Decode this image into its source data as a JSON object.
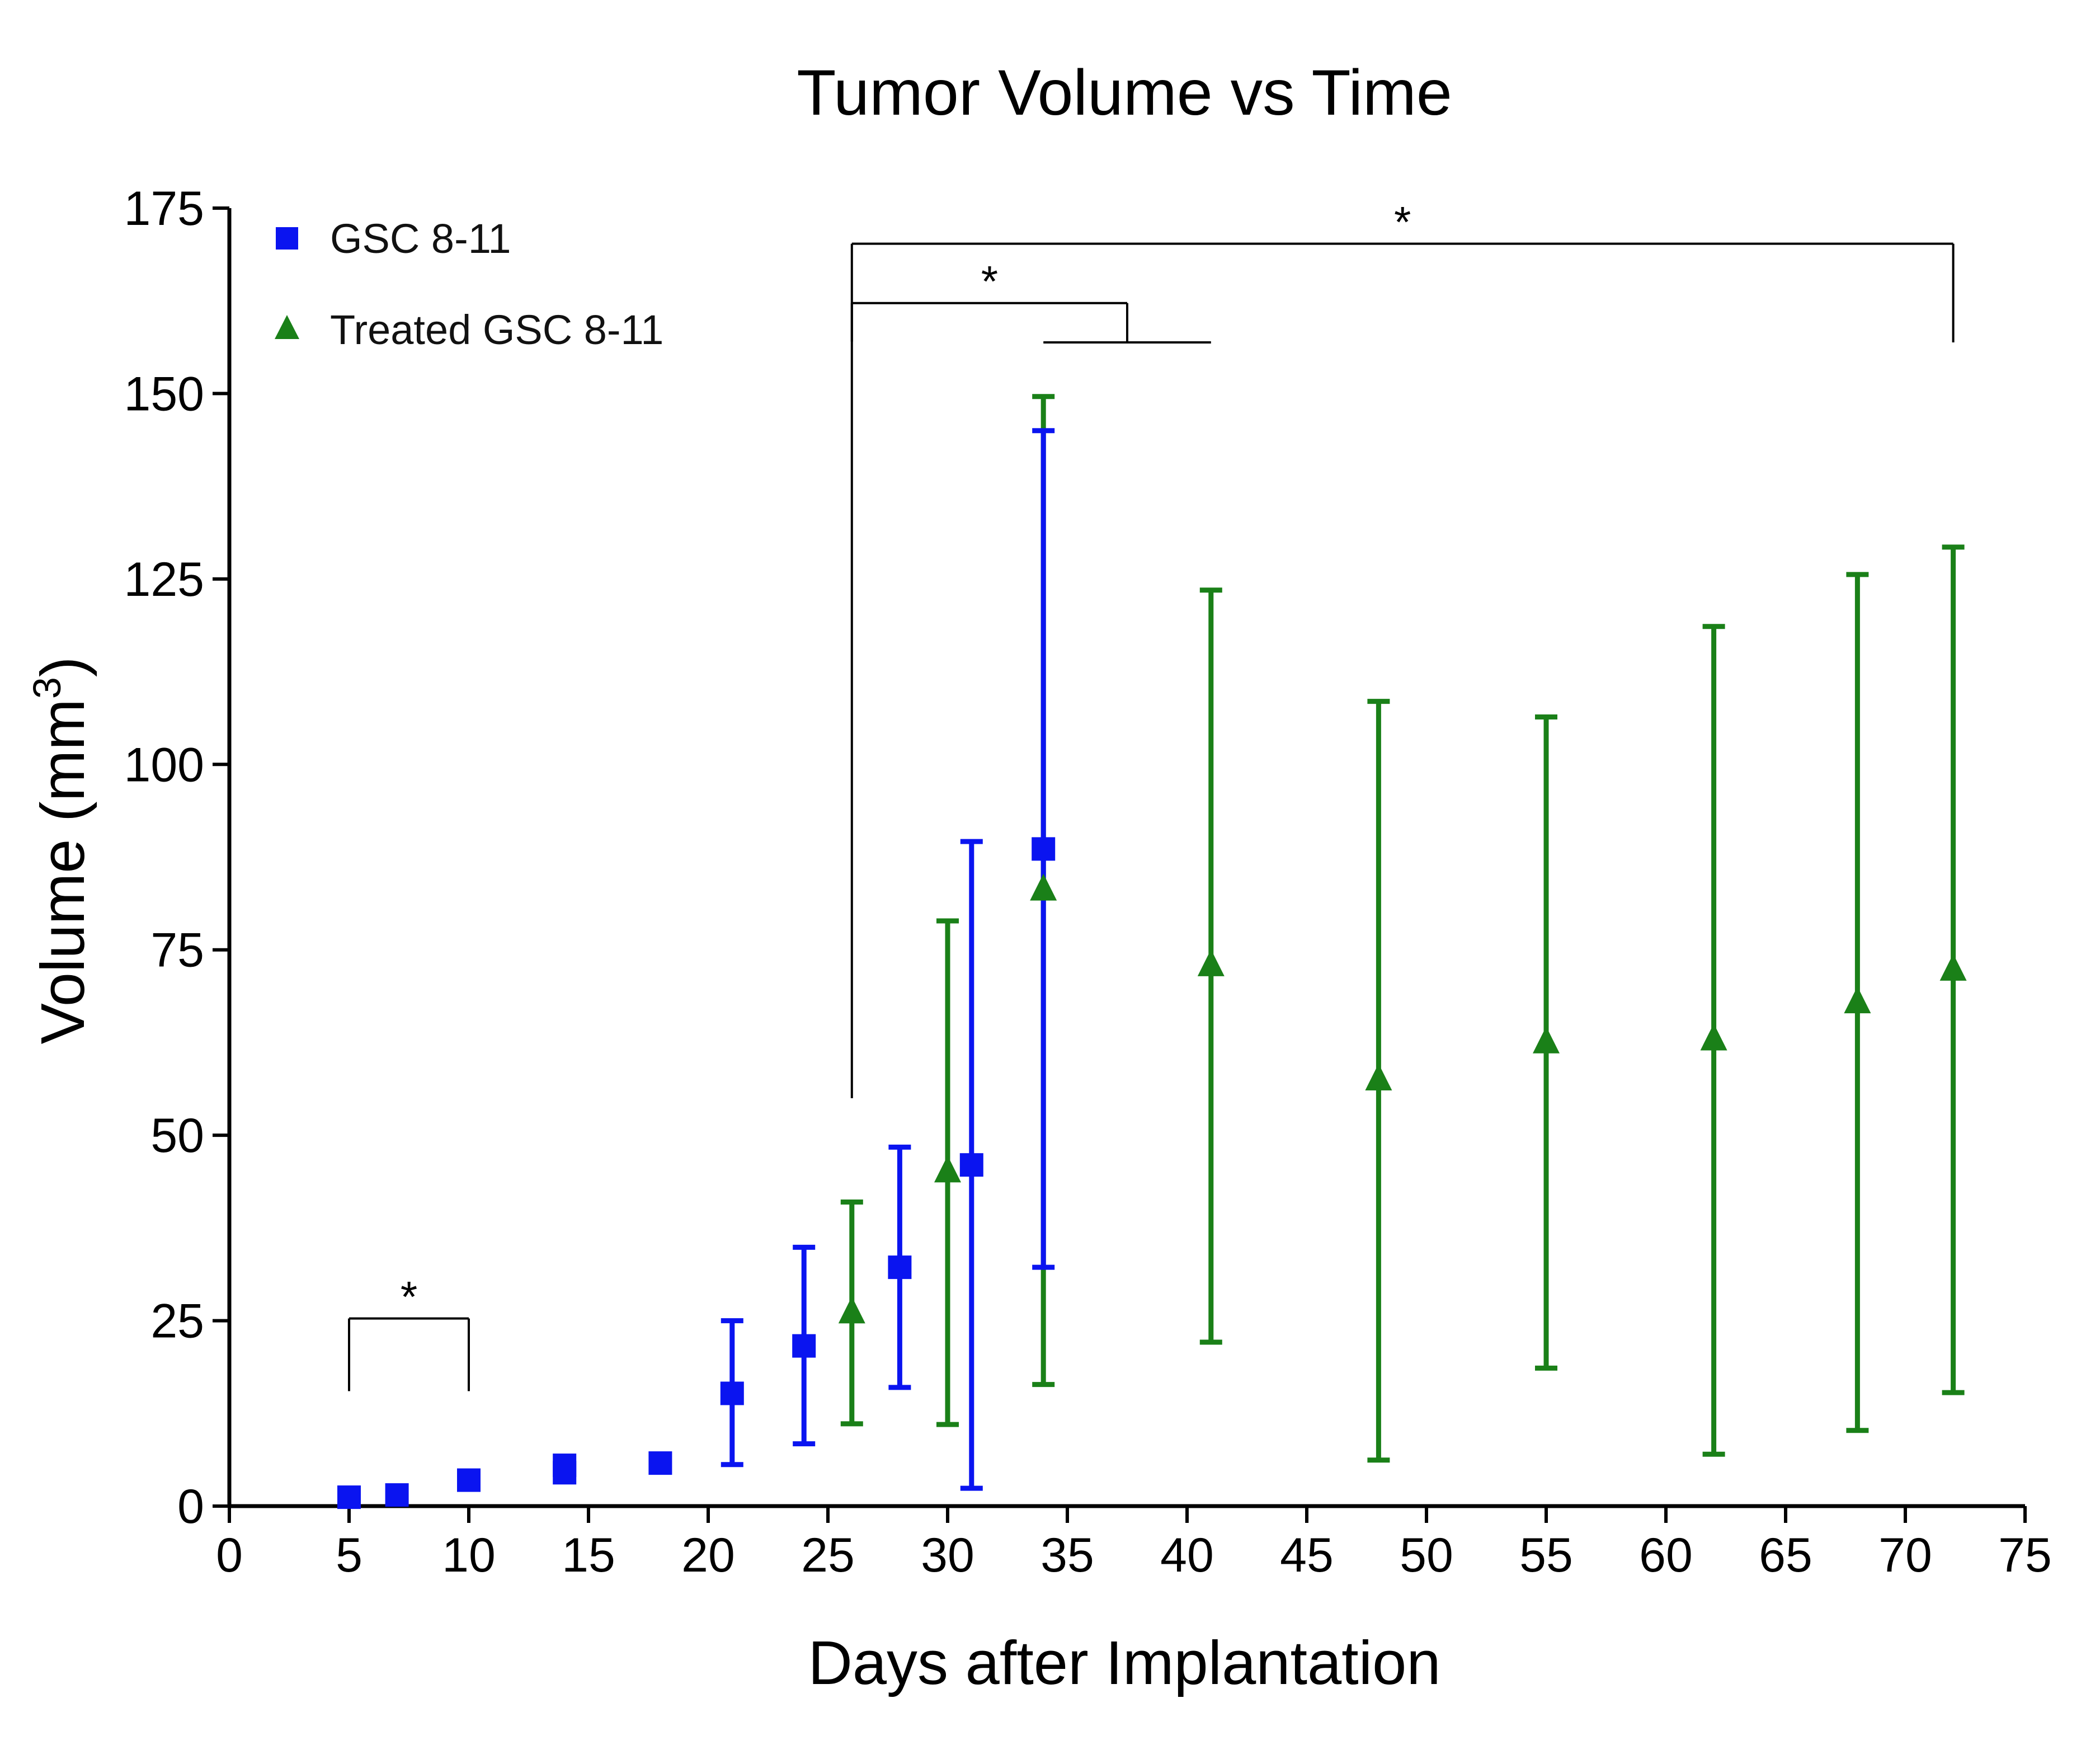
{
  "chart_data": {
    "type": "scatter",
    "title": "Tumor Volume vs Time",
    "xlabel": "Days after Implantation",
    "ylabel": {
      "text": "Volume (mm",
      "superscript": "3",
      "closing": ")"
    },
    "xlim": [
      0,
      75
    ],
    "ylim": [
      0,
      175
    ],
    "x_ticks": [
      "0",
      "5",
      "10",
      "15",
      "20",
      "25",
      "30",
      "35",
      "40",
      "45",
      "50",
      "55",
      "60",
      "65",
      "70",
      "75"
    ],
    "y_ticks": [
      "0",
      "25",
      "50",
      "75",
      "100",
      "125",
      "150",
      "175"
    ],
    "grid": false,
    "legend_position": "top-left",
    "series": [
      {
        "name": "GSC 8-11",
        "marker": "square",
        "color": "#0a14f0",
        "points": [
          {
            "x": 5,
            "y": 1.2,
            "lo": null,
            "hi": null
          },
          {
            "x": 7,
            "y": 1.5,
            "lo": null,
            "hi": null
          },
          {
            "x": 10,
            "y": 3.5,
            "lo": null,
            "hi": null
          },
          {
            "x": 14,
            "y": 4.5,
            "lo": null,
            "hi": null
          },
          {
            "x": 14,
            "y": 5.5,
            "lo": null,
            "hi": null
          },
          {
            "x": 18,
            "y": 5.8,
            "lo": null,
            "hi": null
          },
          {
            "x": 21,
            "y": 15.2,
            "lo": 5.6,
            "hi": 25.0
          },
          {
            "x": 24,
            "y": 21.6,
            "lo": 8.4,
            "hi": 34.9
          },
          {
            "x": 28,
            "y": 32.2,
            "lo": 16.0,
            "hi": 48.4
          },
          {
            "x": 31,
            "y": 46.0,
            "lo": 2.4,
            "hi": 89.6
          },
          {
            "x": 34,
            "y": 88.6,
            "lo": 32.2,
            "hi": 145.0
          }
        ]
      },
      {
        "name": "Treated GSC 8-11",
        "marker": "triangle",
        "color": "#1a8018",
        "points": [
          {
            "x": 26,
            "y": 26.0,
            "lo": 11.1,
            "hi": 41.0
          },
          {
            "x": 30,
            "y": 45.0,
            "lo": 11.0,
            "hi": 78.9
          },
          {
            "x": 34,
            "y": 83.0,
            "lo": 16.4,
            "hi": 149.6
          },
          {
            "x": 41,
            "y": 72.8,
            "lo": 22.1,
            "hi": 123.5
          },
          {
            "x": 48,
            "y": 57.4,
            "lo": 6.2,
            "hi": 108.5
          },
          {
            "x": 55,
            "y": 62.4,
            "lo": 18.6,
            "hi": 106.4
          },
          {
            "x": 62,
            "y": 62.8,
            "lo": 7.0,
            "hi": 118.6
          },
          {
            "x": 68,
            "y": 67.8,
            "lo": 10.2,
            "hi": 125.6
          },
          {
            "x": 72,
            "y": 72.2,
            "lo": 15.3,
            "hi": 129.3
          }
        ]
      }
    ],
    "significance": [
      {
        "label": "*",
        "type": "bracket",
        "x1": 5,
        "x2": 10,
        "y_top": 25.3,
        "y_bottom": 15.5
      },
      {
        "label": "*",
        "type": "bracket-to-range",
        "x1": 26,
        "x2": 37.5,
        "y_top": 162.2,
        "y_left_bottom": 157.0,
        "y_right_bottom": 156.9,
        "range_x1": 34,
        "range_x2": 41
      },
      {
        "label": "*",
        "type": "bracket",
        "x1": 26,
        "x2": 72,
        "y_top": 170.2,
        "y_left_bottom": 55.0,
        "y_right_bottom": 156.9
      }
    ]
  }
}
